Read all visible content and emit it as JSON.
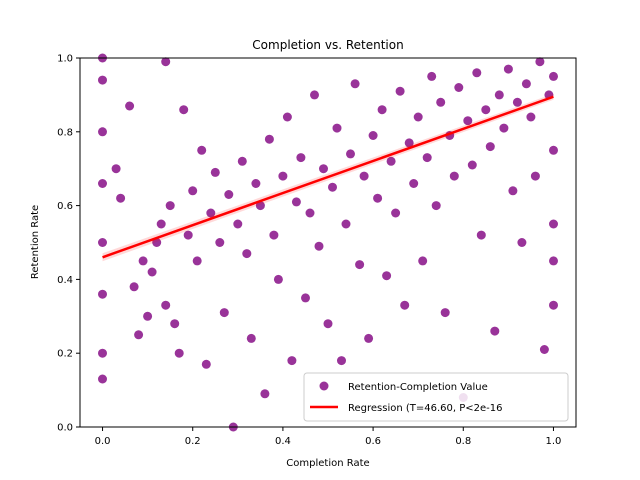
{
  "chart_data": {
    "type": "scatter",
    "title": "Completion vs. Retention",
    "xlabel": "Completion Rate",
    "ylabel": "Retention Rate",
    "xlim": [
      -0.05,
      1.05
    ],
    "ylim": [
      0.0,
      1.0
    ],
    "xticks": [
      "0.0",
      "0.2",
      "0.4",
      "0.6",
      "0.8",
      "1.0"
    ],
    "yticks": [
      "0.0",
      "0.2",
      "0.4",
      "0.6",
      "0.8",
      "1.0"
    ],
    "grid": false,
    "legend_position": "lower-right",
    "series": [
      {
        "name": "Retention-Completion Value",
        "kind": "scatter",
        "color": "#800080",
        "points": [
          [
            0.0,
            1.0
          ],
          [
            0.0,
            0.94
          ],
          [
            0.0,
            0.8
          ],
          [
            0.0,
            0.66
          ],
          [
            0.0,
            0.5
          ],
          [
            0.0,
            0.36
          ],
          [
            0.0,
            0.2
          ],
          [
            0.0,
            0.13
          ],
          [
            0.03,
            0.7
          ],
          [
            0.04,
            0.62
          ],
          [
            0.06,
            0.87
          ],
          [
            0.07,
            0.38
          ],
          [
            0.08,
            0.25
          ],
          [
            0.09,
            0.45
          ],
          [
            0.1,
            0.3
          ],
          [
            0.11,
            0.42
          ],
          [
            0.12,
            0.5
          ],
          [
            0.13,
            0.55
          ],
          [
            0.14,
            0.33
          ],
          [
            0.14,
            0.99
          ],
          [
            0.15,
            0.6
          ],
          [
            0.16,
            0.28
          ],
          [
            0.17,
            0.2
          ],
          [
            0.18,
            0.86
          ],
          [
            0.19,
            0.52
          ],
          [
            0.2,
            0.64
          ],
          [
            0.21,
            0.45
          ],
          [
            0.22,
            0.75
          ],
          [
            0.23,
            0.17
          ],
          [
            0.24,
            0.58
          ],
          [
            0.25,
            0.69
          ],
          [
            0.26,
            0.5
          ],
          [
            0.27,
            0.31
          ],
          [
            0.28,
            0.63
          ],
          [
            0.29,
            0.0
          ],
          [
            0.3,
            0.55
          ],
          [
            0.31,
            0.72
          ],
          [
            0.32,
            0.47
          ],
          [
            0.33,
            0.24
          ],
          [
            0.34,
            0.66
          ],
          [
            0.35,
            0.6
          ],
          [
            0.36,
            0.09
          ],
          [
            0.37,
            0.78
          ],
          [
            0.38,
            0.52
          ],
          [
            0.39,
            0.4
          ],
          [
            0.4,
            0.68
          ],
          [
            0.41,
            0.84
          ],
          [
            0.42,
            0.18
          ],
          [
            0.43,
            0.61
          ],
          [
            0.44,
            0.73
          ],
          [
            0.45,
            0.35
          ],
          [
            0.46,
            0.58
          ],
          [
            0.47,
            0.9
          ],
          [
            0.48,
            0.49
          ],
          [
            0.49,
            0.7
          ],
          [
            0.5,
            0.28
          ],
          [
            0.51,
            0.65
          ],
          [
            0.52,
            0.81
          ],
          [
            0.53,
            0.18
          ],
          [
            0.54,
            0.55
          ],
          [
            0.55,
            0.74
          ],
          [
            0.56,
            0.93
          ],
          [
            0.57,
            0.44
          ],
          [
            0.58,
            0.68
          ],
          [
            0.59,
            0.24
          ],
          [
            0.6,
            0.79
          ],
          [
            0.61,
            0.62
          ],
          [
            0.62,
            0.86
          ],
          [
            0.63,
            0.41
          ],
          [
            0.64,
            0.72
          ],
          [
            0.65,
            0.58
          ],
          [
            0.66,
            0.91
          ],
          [
            0.67,
            0.33
          ],
          [
            0.68,
            0.77
          ],
          [
            0.69,
            0.66
          ],
          [
            0.7,
            0.84
          ],
          [
            0.71,
            0.45
          ],
          [
            0.72,
            0.73
          ],
          [
            0.73,
            0.95
          ],
          [
            0.74,
            0.6
          ],
          [
            0.75,
            0.88
          ],
          [
            0.76,
            0.31
          ],
          [
            0.77,
            0.79
          ],
          [
            0.78,
            0.68
          ],
          [
            0.79,
            0.92
          ],
          [
            0.8,
            0.08
          ],
          [
            0.81,
            0.83
          ],
          [
            0.82,
            0.71
          ],
          [
            0.83,
            0.96
          ],
          [
            0.84,
            0.52
          ],
          [
            0.85,
            0.86
          ],
          [
            0.86,
            0.76
          ],
          [
            0.87,
            0.26
          ],
          [
            0.88,
            0.9
          ],
          [
            0.89,
            0.81
          ],
          [
            0.9,
            0.97
          ],
          [
            0.91,
            0.64
          ],
          [
            0.92,
            0.88
          ],
          [
            0.93,
            0.5
          ],
          [
            0.94,
            0.93
          ],
          [
            0.95,
            0.84
          ],
          [
            0.96,
            0.68
          ],
          [
            0.97,
            0.99
          ],
          [
            0.98,
            0.21
          ],
          [
            0.99,
            0.9
          ],
          [
            1.0,
            0.95
          ],
          [
            1.0,
            0.75
          ],
          [
            1.0,
            0.55
          ],
          [
            1.0,
            0.45
          ],
          [
            1.0,
            0.33
          ]
        ]
      },
      {
        "name": "Regression (T=46.60, P<2e-16",
        "kind": "line",
        "color": "#ff0000",
        "x": [
          0.0,
          1.0
        ],
        "y": [
          0.46,
          0.895
        ]
      }
    ]
  }
}
